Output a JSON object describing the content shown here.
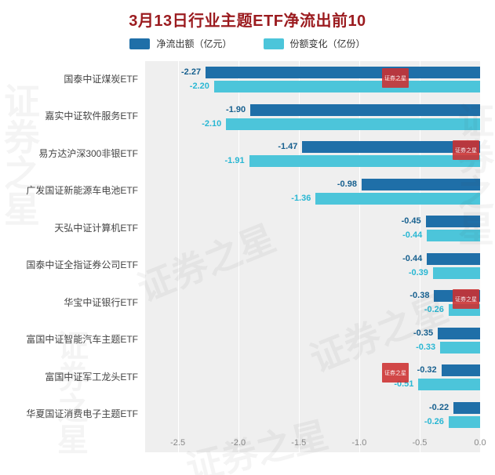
{
  "title": "3月13日行业主题ETF净流出前10",
  "colors": {
    "title": "#9b1b1f",
    "plot_background": "#efefef",
    "gridline": "#ffffff",
    "tick_text": "#888888",
    "category_text": "#444444"
  },
  "legend": [
    {
      "label": "净流出额（亿元）",
      "color": "#1f6fa8"
    },
    {
      "label": "份额变化（亿份）",
      "color": "#4cc5da"
    }
  ],
  "watermark": {
    "text": "证券之星"
  },
  "chart_data": {
    "type": "bar",
    "orientation": "horizontal",
    "title": "3月13日行业主题ETF净流出前10",
    "xlabel": "",
    "ylabel": "",
    "xlim": [
      -2.77,
      0
    ],
    "grid": true,
    "legend_position": "top",
    "categories": [
      "国泰中证煤炭ETF",
      "嘉实中证软件服务ETF",
      "易方达沪深300非银ETF",
      "广发国证新能源车电池ETF",
      "天弘中证计算机ETF",
      "国泰中证全指证券公司ETF",
      "华宝中证银行ETF",
      "富国中证智能汽车主题ETF",
      "富国中证军工龙头ETF",
      "华夏国证消费电子主题ETF"
    ],
    "series": [
      {
        "name": "净流出额（亿元）",
        "color": "#1f6fa8",
        "label_color": "#17608f",
        "values": [
          -2.27,
          -1.9,
          -1.47,
          -0.98,
          -0.45,
          -0.44,
          -0.38,
          -0.35,
          -0.32,
          -0.22
        ]
      },
      {
        "name": "份额变化（亿份）",
        "color": "#4cc5da",
        "label_color": "#29b7d3",
        "values": [
          -2.2,
          -2.1,
          -1.91,
          -1.36,
          -0.44,
          -0.39,
          -0.26,
          -0.33,
          -0.51,
          -0.26
        ]
      }
    ],
    "xticks": [
      "-2.5",
      "-2.0",
      "-1.5",
      "-1.0",
      "-0.5",
      "0.0"
    ]
  }
}
